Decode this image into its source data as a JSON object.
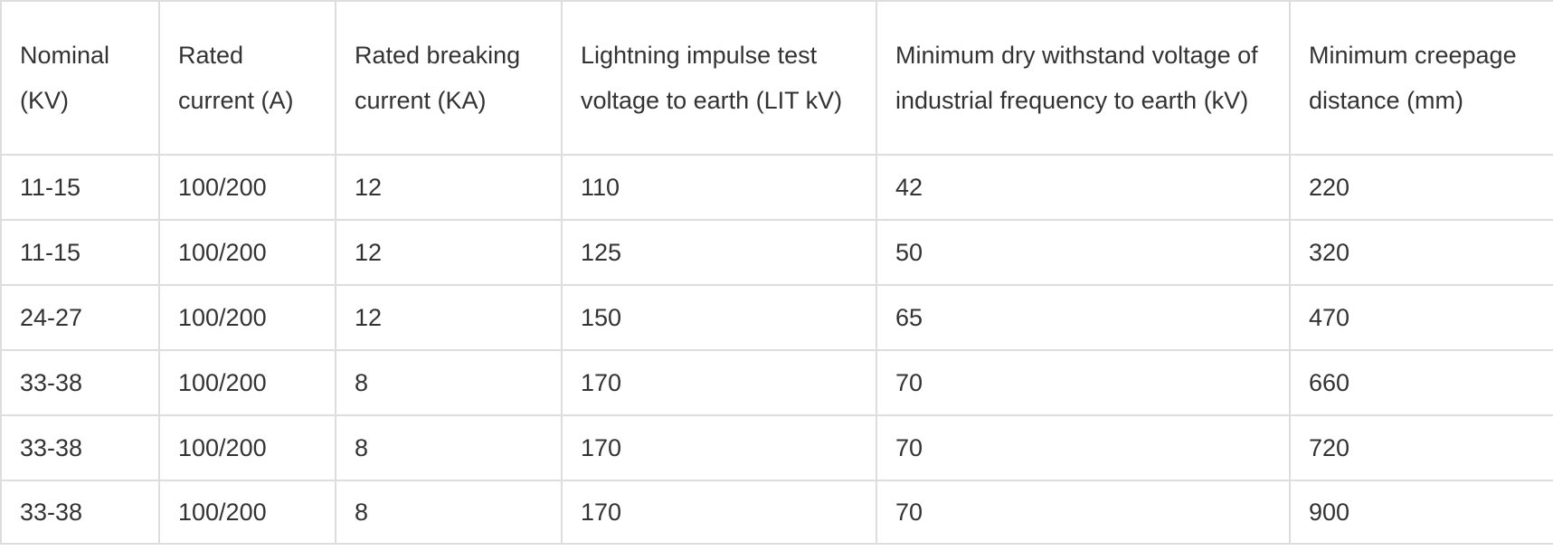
{
  "table": {
    "headers": [
      "Nominal (KV)",
      "Rated current (A)",
      "Rated breaking current (KA)",
      "Lightning impulse test voltage to earth (LIT kV)",
      "Minimum dry withstand voltage of industrial frequency to earth (kV)",
      "Minimum creepage distance (mm)"
    ],
    "rows": [
      [
        "11-15",
        "100/200",
        "12",
        "110",
        "42",
        "220"
      ],
      [
        "11-15",
        "100/200",
        "12",
        "125",
        "50",
        "320"
      ],
      [
        "24-27",
        "100/200",
        "12",
        "150",
        "65",
        "470"
      ],
      [
        "33-38",
        "100/200",
        "8",
        "170",
        "70",
        "660"
      ],
      [
        "33-38",
        "100/200",
        "8",
        "170",
        "70",
        "720"
      ],
      [
        "33-38",
        "100/200",
        "8",
        "170",
        "70",
        "900"
      ]
    ]
  }
}
